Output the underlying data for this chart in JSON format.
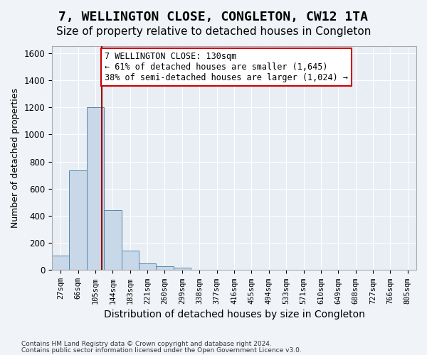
{
  "title": "7, WELLINGTON CLOSE, CONGLETON, CW12 1TA",
  "subtitle": "Size of property relative to detached houses in Congleton",
  "xlabel": "Distribution of detached houses by size in Congleton",
  "ylabel": "Number of detached properties",
  "footer_line1": "Contains HM Land Registry data © Crown copyright and database right 2024.",
  "footer_line2": "Contains public sector information licensed under the Open Government Licence v3.0.",
  "bin_labels": [
    "27sqm",
    "66sqm",
    "105sqm",
    "144sqm",
    "183sqm",
    "221sqm",
    "260sqm",
    "299sqm",
    "338sqm",
    "377sqm",
    "416sqm",
    "455sqm",
    "494sqm",
    "533sqm",
    "571sqm",
    "610sqm",
    "649sqm",
    "688sqm",
    "727sqm",
    "766sqm",
    "805sqm"
  ],
  "bar_values": [
    105,
    735,
    1200,
    440,
    145,
    50,
    28,
    18,
    0,
    0,
    0,
    0,
    0,
    0,
    0,
    0,
    0,
    0,
    0,
    0,
    0
  ],
  "bar_color": "#c8d8e8",
  "bar_edge_color": "#5588aa",
  "vline_x": 2.39,
  "vline_color": "#990000",
  "annotation_line1": "7 WELLINGTON CLOSE: 130sqm",
  "annotation_line2": "← 61% of detached houses are smaller (1,645)",
  "annotation_line3": "38% of semi-detached houses are larger (1,024) →",
  "ylim": [
    0,
    1650
  ],
  "yticks": [
    0,
    200,
    400,
    600,
    800,
    1000,
    1200,
    1400,
    1600
  ],
  "background_color": "#f0f4f8",
  "plot_bg_color": "#e8eef4",
  "grid_color": "#ffffff",
  "title_fontsize": 13,
  "subtitle_fontsize": 11,
  "annotation_fontsize": 8.5
}
